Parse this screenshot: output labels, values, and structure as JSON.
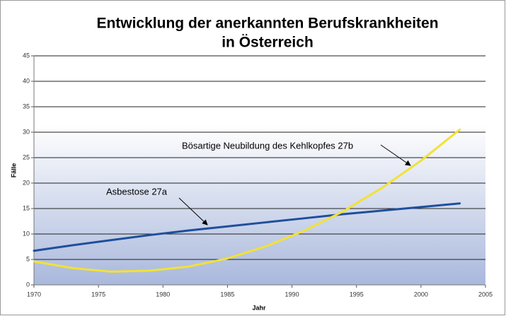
{
  "chart_data": {
    "type": "line",
    "title": [
      "Entwicklung der anerkannten Berufskrankheiten",
      "in Österreich"
    ],
    "xlabel": "Jahr",
    "ylabel": "Fälle",
    "x": [
      1970,
      1973,
      1976,
      1979,
      1982,
      1985,
      1988,
      1991,
      1994,
      1997,
      2000,
      2003
    ],
    "series": [
      {
        "name": "Asbestose 27a",
        "color": "#1f4e9c",
        "values": [
          6.7,
          7.8,
          8.8,
          9.8,
          10.7,
          11.5,
          12.3,
          13.1,
          13.9,
          14.6,
          15.3,
          16.0
        ]
      },
      {
        "name": "Bösartige Neubildung des Kehlkopfes 27b",
        "color": "#f2e234",
        "values": [
          4.6,
          3.3,
          2.6,
          2.8,
          3.6,
          5.2,
          7.6,
          10.7,
          14.5,
          19.1,
          24.4,
          30.5
        ]
      }
    ],
    "xlim": [
      1970,
      2005
    ],
    "xticks": [
      1970,
      1975,
      1980,
      1985,
      1990,
      1995,
      2000,
      2005
    ],
    "ylim": [
      0,
      45
    ],
    "yticks": [
      0,
      5,
      10,
      15,
      20,
      25,
      30,
      35,
      40,
      45
    ],
    "grid": true
  }
}
